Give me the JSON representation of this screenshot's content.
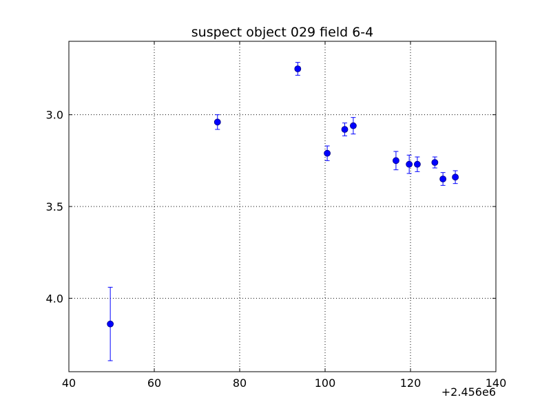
{
  "chart_data": {
    "type": "scatter",
    "title": "suspect object 029 field 6-4",
    "xlabel": "",
    "ylabel": "",
    "x_offset_label": "+2.456e6",
    "xlim": [
      40,
      140
    ],
    "ylim": [
      4.4,
      2.6
    ],
    "y_inverted": true,
    "grid": true,
    "x_ticks": [
      40,
      60,
      80,
      100,
      120,
      140
    ],
    "x_tick_labels": [
      "40",
      "60",
      "80",
      "100",
      "120",
      "140"
    ],
    "y_ticks": [
      3.0,
      3.5,
      4.0
    ],
    "y_tick_labels": [
      "3.0",
      "3.5",
      "4.0"
    ],
    "marker_color": "#0000ff",
    "series": [
      {
        "points": [
          {
            "x": 49.7,
            "y": 4.14,
            "err": 0.2
          },
          {
            "x": 74.8,
            "y": 3.04,
            "err": 0.04
          },
          {
            "x": 93.6,
            "y": 2.75,
            "err": 0.035
          },
          {
            "x": 100.5,
            "y": 3.21,
            "err": 0.04
          },
          {
            "x": 104.6,
            "y": 3.08,
            "err": 0.035
          },
          {
            "x": 106.6,
            "y": 3.06,
            "err": 0.045
          },
          {
            "x": 116.6,
            "y": 3.25,
            "err": 0.05
          },
          {
            "x": 119.7,
            "y": 3.27,
            "err": 0.05
          },
          {
            "x": 121.6,
            "y": 3.27,
            "err": 0.04
          },
          {
            "x": 125.7,
            "y": 3.26,
            "err": 0.03
          },
          {
            "x": 127.6,
            "y": 3.35,
            "err": 0.035
          },
          {
            "x": 130.5,
            "y": 3.34,
            "err": 0.035
          }
        ]
      }
    ]
  }
}
